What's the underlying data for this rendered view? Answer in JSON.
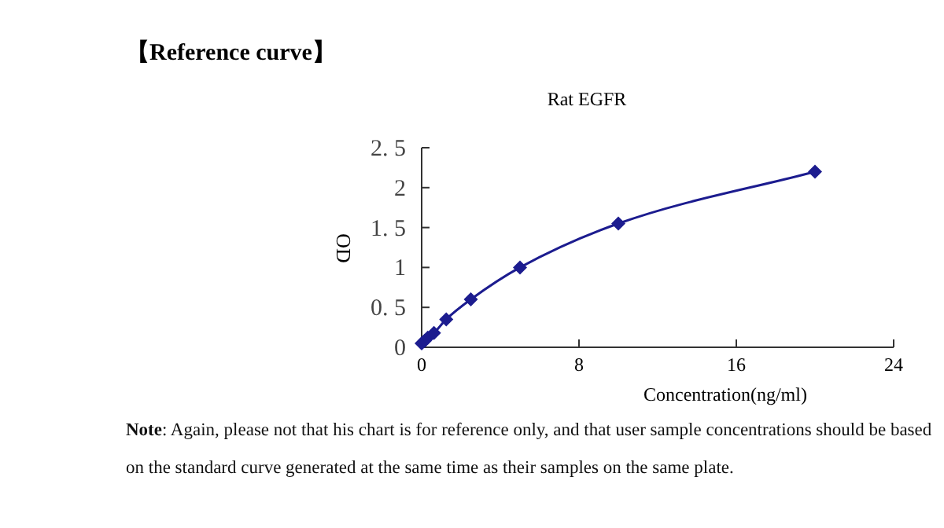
{
  "chart_data": {
    "type": "line",
    "title": "【Reference curve】",
    "subtitle": "Rat EGFR",
    "xlabel": "Concentration(ng/ml)",
    "ylabel": "OD",
    "x": [
      0,
      0.156,
      0.3125,
      0.625,
      1.25,
      2.5,
      5,
      10,
      20
    ],
    "series": [
      {
        "color": "#1c1c8f",
        "values": [
          0.05,
          0.08,
          0.12,
          0.18,
          0.35,
          0.6,
          1.0,
          1.55,
          2.2
        ]
      }
    ],
    "xlim": [
      0,
      24
    ],
    "xticks": [
      0,
      8,
      16,
      24
    ],
    "ylim": [
      0,
      2.5
    ],
    "yticks": [
      0,
      {
        "value": 0.5,
        "label": "0. 5"
      },
      1,
      {
        "value": 1.5,
        "label": "1. 5"
      },
      2,
      {
        "value": 2.5,
        "label": "2. 5"
      }
    ],
    "marker": "diamond",
    "line_style": "solid",
    "annotations": [
      "**Note**: Again, please not that his chart is for reference only, and that user sample concentrations should be based on the standard curve generated at the same time as their samples on the same plate."
    ]
  }
}
